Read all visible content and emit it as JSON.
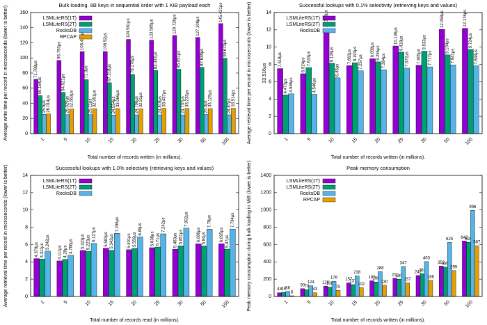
{
  "chart_data": [
    {
      "type": "bar",
      "title": "Bulk loading. 8B keys in sequential order with 1 KiB payload each",
      "x_label": "Total number of records written (in millions).",
      "y_label": "Average write time per record in microseconds (lower is better)",
      "categories": [
        "1",
        "5",
        "10",
        "15",
        "20",
        "25",
        "30",
        "50",
        "100"
      ],
      "ylim": [
        0,
        160
      ],
      "yticks": [
        0,
        20,
        40,
        60,
        80,
        100,
        120,
        140,
        160
      ],
      "legend": "upper left",
      "series": [
        {
          "name": "LSMLiteRS(1T)",
          "color": "#9400d3",
          "values": [
            71.788,
            96.793,
            108.435,
            108.52,
            124.561,
            123.565,
            129.726,
            127.108,
            145.421
          ],
          "value_labels": [
            "71.788μs",
            "96.793μs",
            "108.435μs",
            "108.52μs",
            "124.561μs",
            "123.565μs",
            "129.726μs",
            "127.108μs",
            "145.421μs"
          ]
        },
        {
          "name": "LSMLiteRS(2T)",
          "color": "#009e73",
          "values": [
            50.154,
            54.521,
            71.3,
            67.218,
            78.178,
            83.437,
            85.051,
            87.638,
            99.673
          ],
          "value_labels": [
            "50.154μs",
            "54.521μs",
            "71.3μs",
            "67.218μs",
            "78.178μs",
            "83.437μs",
            "85.051μs",
            "87.638μs",
            "99.673μs"
          ]
        },
        {
          "name": "RocksDB",
          "color": "#56b4e9",
          "values": [
            25.5,
            25.029,
            25.11,
            24.554,
            24.796,
            24.818,
            24.737,
            25.3,
            24.87
          ],
          "value_labels": [
            "25.5μs",
            "25.029μs",
            "25.11μs",
            "24.554μs",
            "24.796μs",
            "24.818μs",
            "24.737μs",
            "25.3μs",
            "24.87μs"
          ]
        },
        {
          "name": "RPCAP",
          "color": "#e69f00",
          "values": [
            26.014,
            32.563,
            32.951,
            33.066,
            32.81,
            33.437,
            33.233,
            33.129,
            33.514
          ],
          "value_labels": [
            "26.014μs",
            "32.563μs",
            "32.951μs",
            "33.066μs",
            "32.81μs",
            "33.437μs",
            "33.233μs",
            "33.129μs",
            "33.514μs"
          ]
        }
      ]
    },
    {
      "type": "bar",
      "title": "Successful lookups with 0.1% selectivity (retrieving keys and values)",
      "x_label": "Total number of records written (in millions).",
      "y_label": "Average retrieval time per record in microseconds (lower is better)",
      "annotation": "33.516μs",
      "categories": [
        "1",
        "5",
        "10",
        "15",
        "20",
        "25",
        "30",
        "50",
        "100"
      ],
      "ylim": [
        0,
        14
      ],
      "yticks": [
        0,
        2,
        4,
        6,
        8,
        10,
        12,
        14
      ],
      "legend": "upper left",
      "series": [
        {
          "name": "LSMLiteRS(1T)",
          "color": "#9400d3",
          "values": [
            7.518,
            6.924,
            12.133,
            7.863,
            8.658,
            10.136,
            7.905,
            12.058,
            12.176
          ],
          "value_labels": [
            "7.518μs",
            "6.924μs",
            "12.133μs",
            "7.863μs",
            "8.658μs",
            "10.136μs",
            "7.905μs",
            "12.058μs",
            "12.176μs"
          ]
        },
        {
          "name": "LSMLiteRS(2T)",
          "color": "#009e73",
          "values": [
            4.473,
            7.633,
            8.128,
            8.193,
            8.295,
            9.418,
            9.533,
            9.104,
            9.724
          ],
          "value_labels": [
            "4.473μs",
            "7.633μs",
            "8.128μs",
            "8.193μs",
            "8.295μs",
            "9.418μs",
            "9.533μs",
            "9.104μs",
            "9.724μs"
          ]
        },
        {
          "name": "RocksDB",
          "color": "#56b4e9",
          "values": [
            4.596,
            4.546,
            6.45,
            7.257,
            7.384,
            7.572,
            7.717,
            7.941,
            7.844
          ],
          "value_labels": [
            "4.596μs",
            "4.546μs",
            "6.45μs",
            "7.257μs",
            "7.384μs",
            "7.572μs",
            "7.717μs",
            "7.941μs",
            "7.844μs"
          ]
        }
      ]
    },
    {
      "type": "bar",
      "title": "Successful lookups with 1.0% selectivity (retrieving keys and values)",
      "x_label": "Total number of records read (in millions).",
      "y_label": "Average retrieval time per record in microseconds (lower is better)",
      "categories": [
        "1",
        "5",
        "10",
        "15",
        "20",
        "25",
        "30",
        "50",
        "100"
      ],
      "ylim": [
        0,
        14
      ],
      "yticks": [
        0,
        2,
        4,
        6,
        8,
        10,
        12,
        14
      ],
      "legend": "upper left",
      "series": [
        {
          "name": "LSMLiteRS(1T)",
          "color": "#9400d3",
          "values": [
            4.378,
            4.111,
            5.323,
            5.583,
            5.401,
            5.636,
            5.463,
            6.086,
            6.095
          ],
          "value_labels": [
            "4.378μs",
            "4.111μs",
            "5.323μs",
            "5.583μs",
            "5.401μs",
            "5.636μs",
            "5.463μs",
            "6.086μs",
            "6.095μs"
          ]
        },
        {
          "name": "LSMLiteRS(2T)",
          "color": "#009e73",
          "values": [
            4.311,
            4.29,
            5.223,
            5.342,
            5.559,
            5.71,
            5.851,
            5.84,
            5.47
          ],
          "value_labels": [
            "4.311μs",
            "4.29μs",
            "5.223μs",
            "5.342μs",
            "5.559μs",
            "5.71μs",
            "5.851μs",
            "5.84μs",
            "5.47μs"
          ]
        },
        {
          "name": "RocksDB",
          "color": "#56b4e9",
          "values": [
            5.242,
            4.766,
            6.127,
            7.296,
            6.88,
            7.242,
            7.902,
            7.78,
            7.794
          ],
          "value_labels": [
            "5.242μs",
            "4.766μs",
            "6.127μs",
            "7.296μs",
            "6.88μs",
            "7.242μs",
            "7.902μs",
            "7.78μs",
            "7.794μs"
          ]
        }
      ]
    },
    {
      "type": "bar",
      "title": "Peak memory consumption",
      "x_label": "Total number of records written (in millions).",
      "y_label": "Peak memory consumption during bulk loading in MiB (lower is better)",
      "categories": [
        "1",
        "5",
        "10",
        "15",
        "20",
        "25",
        "30",
        "50",
        "100"
      ],
      "ylim": [
        0,
        1400
      ],
      "yticks": [
        0,
        200,
        400,
        600,
        800,
        1000,
        1200,
        1400
      ],
      "legend": "upper left",
      "series": [
        {
          "name": "LSMLiteRS(1T)",
          "color": "#9400d3",
          "values": [
            43,
            90,
            120,
            157,
            182,
            211,
            242,
            352,
            642
          ]
        },
        {
          "name": "LSMLiteRS(2T)",
          "color": "#009e73",
          "values": [
            48,
            79,
            108,
            137,
            168,
            199,
            262,
            339,
            626
          ]
        },
        {
          "name": "RocksDB",
          "color": "#56b4e9",
          "values": [
            58,
            124,
            176,
            238,
            288,
            347,
            403,
            625,
            996
          ]
        },
        {
          "name": "RPCAP",
          "color": "#e69f00",
          "values": [
            8,
            43,
            70,
            102,
            130,
            157,
            186,
            299,
            587
          ]
        }
      ]
    }
  ]
}
